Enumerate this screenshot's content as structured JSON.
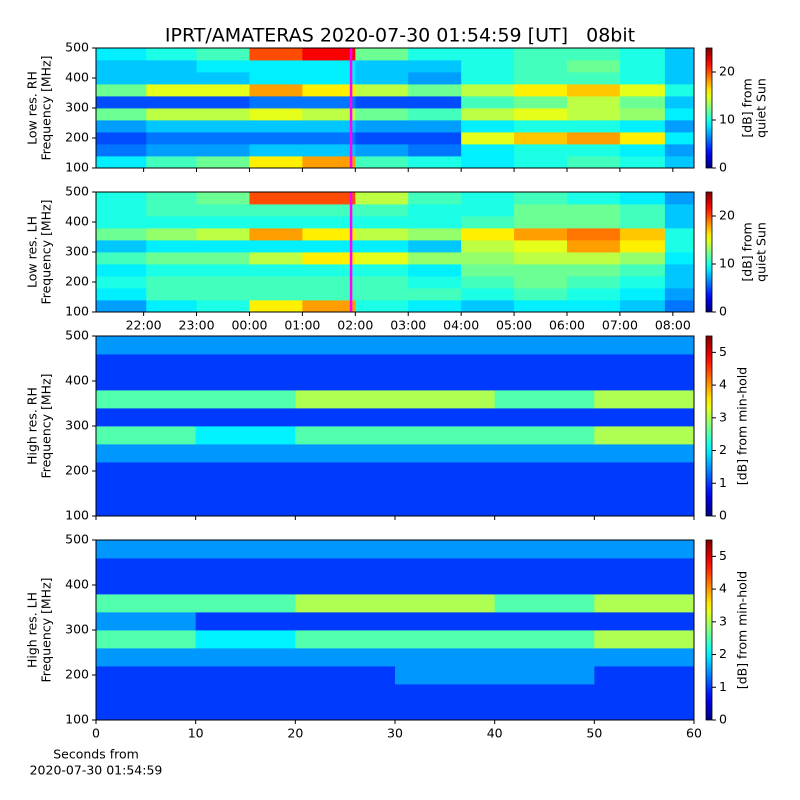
{
  "title": "IPRT/AMATERAS 2020-07-30 01:54:59 [UT]   08bit",
  "chart_data": [
    {
      "type": "heatmap",
      "ylabel": [
        "Low res. RH",
        "Frequency [MHz]"
      ],
      "x": [
        21.6,
        22.5,
        23.5,
        24.5,
        25.5,
        26.5,
        27.5,
        28.5,
        29.5,
        30.5,
        31.5,
        32.2
      ],
      "y": [
        120,
        160,
        200,
        240,
        280,
        320,
        360,
        400,
        440,
        480
      ],
      "values": [
        [
          9,
          11,
          12,
          16,
          18,
          11,
          10,
          9,
          10,
          11,
          10,
          8
        ],
        [
          6,
          7,
          7,
          8,
          8,
          7,
          6,
          9,
          10,
          10,
          9,
          7
        ],
        [
          5,
          6,
          6,
          6,
          6,
          5,
          5,
          15,
          17,
          18,
          16,
          9
        ],
        [
          7,
          8,
          8,
          8,
          8,
          7,
          7,
          9,
          10,
          10,
          9,
          7
        ],
        [
          12,
          14,
          14,
          15,
          14,
          12,
          11,
          14,
          15,
          14,
          13,
          9
        ],
        [
          5,
          5,
          5,
          6,
          6,
          5,
          5,
          11,
          12,
          14,
          12,
          8
        ],
        [
          12,
          15,
          15,
          18,
          16,
          14,
          12,
          14,
          16,
          17,
          15,
          10
        ],
        [
          8,
          8,
          8,
          9,
          9,
          8,
          7,
          10,
          11,
          11,
          10,
          8
        ],
        [
          8,
          8,
          9,
          9,
          9,
          8,
          8,
          10,
          11,
          12,
          10,
          8
        ],
        [
          9,
          10,
          11,
          20,
          22,
          12,
          10,
          10,
          11,
          11,
          10,
          8
        ]
      ],
      "xlim": [
        21.1,
        32.4
      ],
      "xticks": [
        22,
        23,
        24,
        25,
        26,
        27,
        28,
        29,
        30,
        31,
        32
      ],
      "xticklabels": false,
      "ylim": [
        100,
        500
      ],
      "yticks": [
        100,
        200,
        300,
        400,
        500
      ],
      "clim": [
        0,
        25
      ],
      "cticks": [
        0,
        10,
        20
      ],
      "clabel": [
        "[dB] from",
        "quiet Sun"
      ],
      "colormap": "jet",
      "marker_x": 25.92,
      "marker_color": "#ff00ff"
    },
    {
      "type": "heatmap",
      "ylabel": [
        "Low res. LH",
        "Frequency [MHz]"
      ],
      "x": [
        21.6,
        22.5,
        23.5,
        24.5,
        25.5,
        26.5,
        27.5,
        28.5,
        29.5,
        30.5,
        31.5,
        32.2
      ],
      "y": [
        120,
        160,
        200,
        240,
        280,
        320,
        360,
        400,
        440,
        480
      ],
      "values": [
        [
          7,
          9,
          10,
          16,
          18,
          10,
          9,
          8,
          9,
          9,
          8,
          6
        ],
        [
          9,
          11,
          11,
          11,
          11,
          11,
          11,
          10,
          11,
          10,
          9,
          7
        ],
        [
          10,
          11,
          11,
          11,
          11,
          11,
          10,
          11,
          12,
          11,
          10,
          8
        ],
        [
          9,
          10,
          10,
          10,
          10,
          10,
          9,
          12,
          12,
          12,
          11,
          8
        ],
        [
          11,
          12,
          12,
          14,
          16,
          15,
          13,
          13,
          14,
          14,
          13,
          9
        ],
        [
          8,
          9,
          9,
          9,
          9,
          9,
          8,
          14,
          15,
          18,
          16,
          10
        ],
        [
          12,
          13,
          14,
          18,
          16,
          14,
          13,
          16,
          18,
          19,
          17,
          10
        ],
        [
          10,
          10,
          10,
          10,
          10,
          10,
          10,
          11,
          12,
          12,
          11,
          8
        ],
        [
          10,
          11,
          11,
          11,
          11,
          11,
          10,
          10,
          12,
          12,
          11,
          8
        ],
        [
          10,
          11,
          12,
          20,
          20,
          14,
          11,
          10,
          11,
          10,
          9,
          7
        ]
      ],
      "xlim": [
        21.1,
        32.4
      ],
      "xticks": [
        {
          "value": 22,
          "label": "22:00"
        },
        {
          "value": 23,
          "label": "23:00"
        },
        {
          "value": 24,
          "label": "00:00"
        },
        {
          "value": 25,
          "label": "01:00"
        },
        {
          "value": 26,
          "label": "02:00"
        },
        {
          "value": 27,
          "label": "03:00"
        },
        {
          "value": 28,
          "label": "04:00"
        },
        {
          "value": 29,
          "label": "05:00"
        },
        {
          "value": 30,
          "label": "06:00"
        },
        {
          "value": 31,
          "label": "07:00"
        },
        {
          "value": 32,
          "label": "08:00"
        }
      ],
      "xticklabels": true,
      "ylim": [
        100,
        500
      ],
      "yticks": [
        100,
        200,
        300,
        400,
        500
      ],
      "clim": [
        0,
        25
      ],
      "cticks": [
        0,
        10,
        20
      ],
      "clabel": [
        "[dB] from",
        "quiet Sun"
      ],
      "colormap": "jet",
      "marker_x": 25.92,
      "marker_color": "#ff00ff"
    },
    {
      "type": "heatmap",
      "ylabel": [
        "High res. RH",
        "Frequency [MHz]"
      ],
      "x": [
        5,
        15,
        25,
        35,
        45,
        55
      ],
      "y": [
        120,
        160,
        200,
        240,
        280,
        320,
        360,
        400,
        440,
        480
      ],
      "values": [
        [
          1,
          1,
          1,
          1,
          1,
          1
        ],
        [
          1,
          1,
          1,
          1,
          1,
          1
        ],
        [
          1,
          1,
          1,
          1,
          1,
          1
        ],
        [
          1.5,
          1.5,
          1.5,
          1.5,
          1.5,
          1.5
        ],
        [
          2.5,
          2,
          2.5,
          2.5,
          2.5,
          3
        ],
        [
          1,
          1,
          1,
          1,
          1,
          1
        ],
        [
          2.5,
          2.5,
          3,
          3,
          2.5,
          3
        ],
        [
          1,
          1,
          1,
          1,
          1,
          1
        ],
        [
          1,
          1,
          1,
          1,
          1,
          1
        ],
        [
          1.5,
          1.5,
          1.5,
          1.5,
          1.5,
          1.5
        ]
      ],
      "xlim": [
        0,
        60
      ],
      "xticks": [
        0,
        10,
        20,
        30,
        40,
        50,
        60
      ],
      "xticklabels": false,
      "ylim": [
        100,
        500
      ],
      "yticks": [
        100,
        200,
        300,
        400,
        500
      ],
      "clim": [
        0,
        5.5
      ],
      "cticks": [
        0,
        1,
        2,
        3,
        4,
        5
      ],
      "clabel": [
        "[dB] from min-hold"
      ],
      "colormap": "jet"
    },
    {
      "type": "heatmap",
      "ylabel": [
        "High res. LH",
        "Frequency [MHz]"
      ],
      "x": [
        5,
        15,
        25,
        35,
        45,
        55
      ],
      "y": [
        120,
        160,
        200,
        240,
        280,
        320,
        360,
        400,
        440,
        480
      ],
      "values": [
        [
          1,
          1,
          1,
          1,
          1,
          1
        ],
        [
          1,
          1,
          1,
          1,
          1,
          1
        ],
        [
          1,
          1,
          1,
          1.5,
          1.5,
          1
        ],
        [
          1.5,
          1.5,
          1.5,
          1.5,
          1.5,
          1.5
        ],
        [
          2.5,
          2,
          2.5,
          2.5,
          2.5,
          3
        ],
        [
          1.5,
          1,
          1,
          1,
          1,
          1
        ],
        [
          2.5,
          2.5,
          3,
          3,
          2.5,
          3
        ],
        [
          1,
          1,
          1,
          1,
          1,
          1
        ],
        [
          1,
          1,
          1,
          1,
          1,
          1
        ],
        [
          1.5,
          1.5,
          1.5,
          1.5,
          1.5,
          1.5
        ]
      ],
      "xlim": [
        0,
        60
      ],
      "xticks": [
        0,
        10,
        20,
        30,
        40,
        50,
        60
      ],
      "xticklabels": true,
      "xlabel": [
        "Seconds from",
        "2020-07-30 01:54:59"
      ],
      "ylim": [
        100,
        500
      ],
      "yticks": [
        100,
        200,
        300,
        400,
        500
      ],
      "clim": [
        0,
        5.5
      ],
      "cticks": [
        0,
        1,
        2,
        3,
        4,
        5
      ],
      "clabel": [
        "[dB] from min-hold"
      ],
      "colormap": "jet"
    }
  ]
}
